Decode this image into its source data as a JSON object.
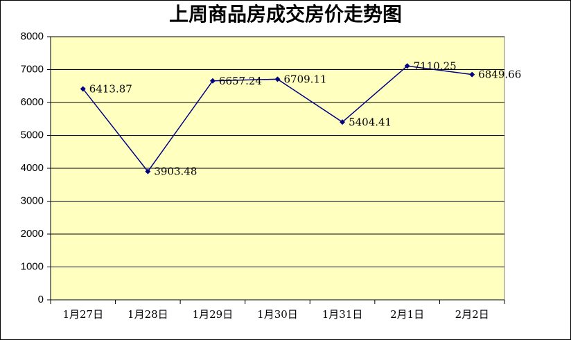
{
  "chart_data": {
    "type": "line",
    "title": "上周商品房成交房价走势图",
    "categories": [
      "1月27日",
      "1月28日",
      "1月29日",
      "1月30日",
      "1月31日",
      "2月1日",
      "2月2日"
    ],
    "series": [
      {
        "color": "#000080",
        "values": [
          6413.87,
          3903.48,
          6657.24,
          6709.11,
          5404.41,
          7110.25,
          6849.66
        ]
      }
    ],
    "ylim": [
      0,
      8000
    ],
    "yticks": [
      0,
      1000,
      2000,
      3000,
      4000,
      5000,
      6000,
      7000,
      8000
    ],
    "grid": true
  }
}
